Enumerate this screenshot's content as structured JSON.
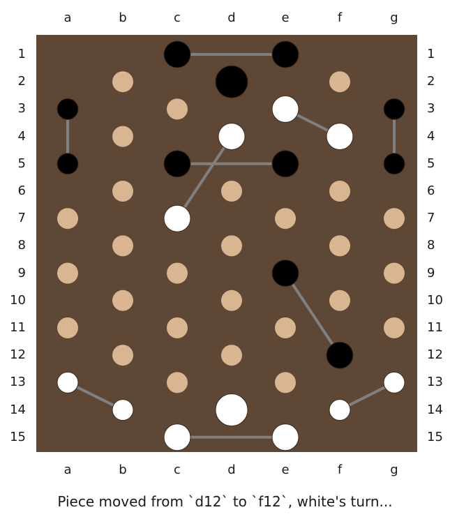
{
  "board": {
    "columns": [
      "a",
      "b",
      "c",
      "d",
      "e",
      "f",
      "g"
    ],
    "rows": [
      "1",
      "2",
      "3",
      "4",
      "5",
      "6",
      "7",
      "8",
      "9",
      "10",
      "11",
      "12",
      "13",
      "14",
      "15"
    ],
    "colors": {
      "background": "#5e4835",
      "empty_point": "#d9b691",
      "black_piece": "#000000",
      "white_piece": "#ffffff",
      "link": "#808080"
    },
    "empty_points": [
      "b2",
      "f2",
      "c3",
      "b4",
      "b6",
      "d6",
      "f6",
      "a7",
      "e7",
      "g7",
      "b8",
      "d8",
      "f8",
      "a9",
      "c9",
      "g9",
      "b10",
      "d10",
      "f10",
      "a11",
      "c11",
      "e11",
      "g11",
      "b12",
      "d12",
      "c13",
      "e13"
    ],
    "pieces": [
      {
        "at": "c1",
        "color": "black",
        "size": "normal"
      },
      {
        "at": "e1",
        "color": "black",
        "size": "normal"
      },
      {
        "at": "d2",
        "color": "black",
        "size": "large"
      },
      {
        "at": "a3",
        "color": "black",
        "size": "small"
      },
      {
        "at": "g3",
        "color": "black",
        "size": "small"
      },
      {
        "at": "a5",
        "color": "black",
        "size": "small"
      },
      {
        "at": "g5",
        "color": "black",
        "size": "small"
      },
      {
        "at": "c5",
        "color": "black",
        "size": "normal"
      },
      {
        "at": "e5",
        "color": "black",
        "size": "normal"
      },
      {
        "at": "e9",
        "color": "black",
        "size": "normal"
      },
      {
        "at": "f12",
        "color": "black",
        "size": "normal"
      },
      {
        "at": "e3",
        "color": "white",
        "size": "normal"
      },
      {
        "at": "d4",
        "color": "white",
        "size": "normal"
      },
      {
        "at": "f4",
        "color": "white",
        "size": "normal"
      },
      {
        "at": "c7",
        "color": "white",
        "size": "normal"
      },
      {
        "at": "a13",
        "color": "white",
        "size": "small"
      },
      {
        "at": "g13",
        "color": "white",
        "size": "small"
      },
      {
        "at": "b14",
        "color": "white",
        "size": "small"
      },
      {
        "at": "f14",
        "color": "white",
        "size": "small"
      },
      {
        "at": "d14",
        "color": "white",
        "size": "large"
      },
      {
        "at": "c15",
        "color": "white",
        "size": "normal"
      },
      {
        "at": "e15",
        "color": "white",
        "size": "normal"
      }
    ],
    "links": [
      [
        "c1",
        "e1"
      ],
      [
        "a3",
        "a5"
      ],
      [
        "g3",
        "g5"
      ],
      [
        "e3",
        "f4"
      ],
      [
        "d4",
        "c7"
      ],
      [
        "c5",
        "e5"
      ],
      [
        "e9",
        "f12"
      ],
      [
        "a13",
        "b14"
      ],
      [
        "g13",
        "f14"
      ],
      [
        "c15",
        "e15"
      ]
    ]
  },
  "status": {
    "message": "Piece moved from `d12` to `f12`, white's turn..."
  }
}
